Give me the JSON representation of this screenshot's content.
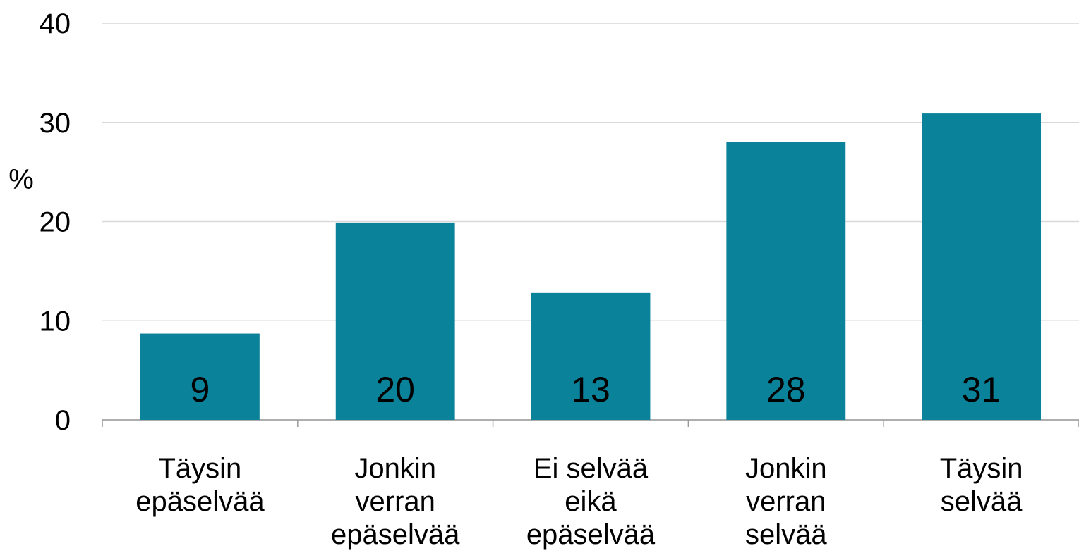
{
  "chart_data": {
    "type": "bar",
    "y_label": "%",
    "categories": [
      "Täysin\nepäselvää",
      "Jonkin\nverran\nepäselvää",
      "Ei selvää\neikä\nepäselvää",
      "Jonkin\nverran\nselvää",
      "Täysin\nselvää"
    ],
    "values": [
      8.7,
      19.9,
      12.8,
      28,
      30.9
    ],
    "value_labels": [
      "9",
      "20",
      "13",
      "28",
      "31"
    ],
    "color": "#0a8299",
    "ylim": [
      0,
      40
    ],
    "yticks": [
      0,
      10,
      20,
      30,
      40
    ],
    "grid": true
  }
}
